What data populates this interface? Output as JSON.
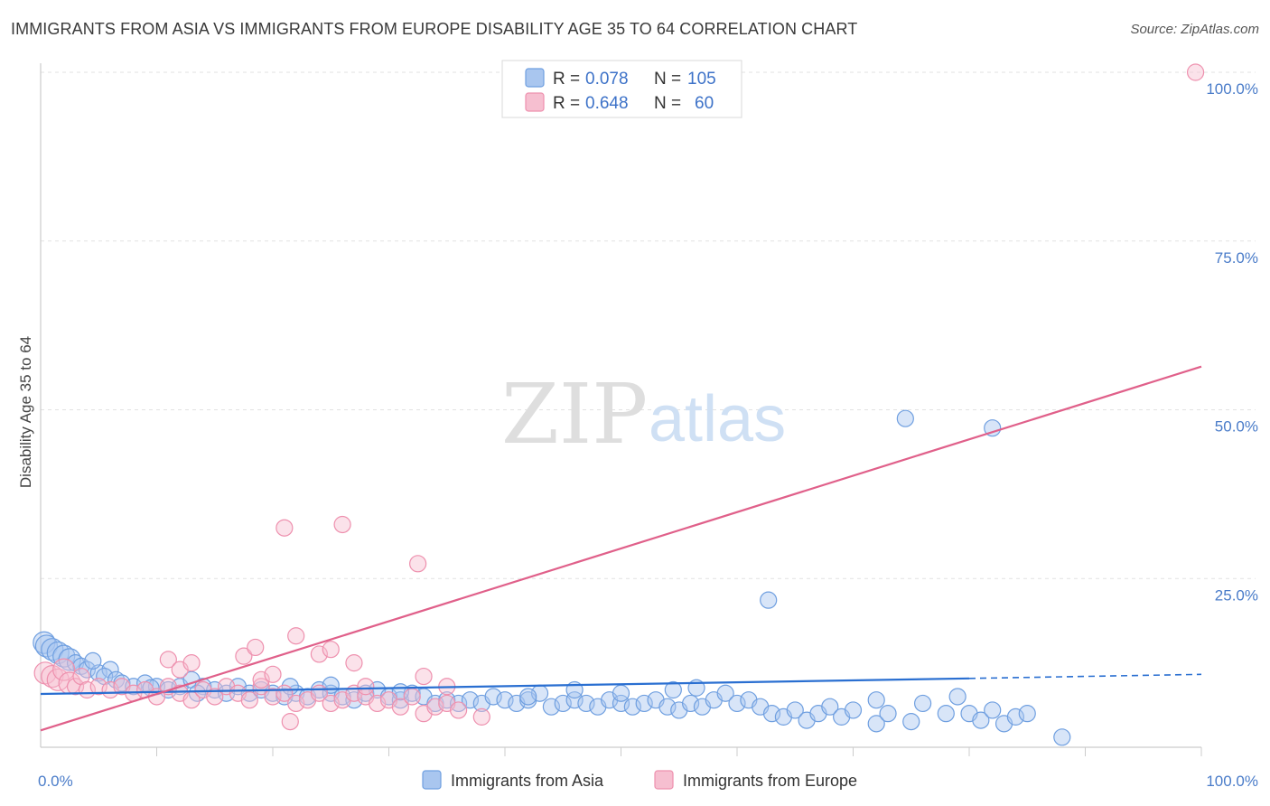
{
  "title": "IMMIGRANTS FROM ASIA VS IMMIGRANTS FROM EUROPE DISABILITY AGE 35 TO 64 CORRELATION CHART",
  "source": "Source: ZipAtlas.com",
  "watermark": {
    "zip": "ZIP",
    "atlas": "atlas"
  },
  "chart_data": {
    "type": "scatter",
    "title": "IMMIGRANTS FROM ASIA VS IMMIGRANTS FROM EUROPE DISABILITY AGE 35 TO 64 CORRELATION CHART",
    "xlabel": "",
    "ylabel": "Disability Age 35 to 64",
    "xlim": [
      0,
      100
    ],
    "ylim": [
      0,
      100
    ],
    "x_tick_labels": {
      "left": "0.0%",
      "right": "100.0%"
    },
    "y_ticks": [
      {
        "value": 100,
        "label": "100.0%"
      },
      {
        "value": 75,
        "label": "75.0%"
      },
      {
        "value": 50,
        "label": "50.0%"
      },
      {
        "value": 25,
        "label": "25.0%"
      }
    ],
    "legend_position": "top-center",
    "stats": [
      {
        "r_label": "R =",
        "r": "0.078",
        "n_label": "N =",
        "n": "105"
      },
      {
        "r_label": "R =",
        "r": "0.648",
        "n_label": "N =",
        "n": "60"
      }
    ],
    "series": [
      {
        "name": "Immigrants from Asia",
        "color": "#6f9fe0",
        "fill": "#a9c6ef",
        "line_color": "#2a6fd1",
        "trend": {
          "x0": 0,
          "y0": 7.9,
          "x1": 80,
          "y1": 10.2,
          "dash_to_x": 100,
          "dash_to_y": 10.8
        },
        "points": [
          [
            0.3,
            15.5
          ],
          [
            0.5,
            15
          ],
          [
            1,
            14.5
          ],
          [
            1.5,
            14
          ],
          [
            2,
            13.5
          ],
          [
            2.5,
            13
          ],
          [
            3,
            12.5
          ],
          [
            3.5,
            12
          ],
          [
            4,
            11.5
          ],
          [
            5,
            11
          ],
          [
            6,
            11.5
          ],
          [
            5.5,
            10.5
          ],
          [
            6.5,
            10
          ],
          [
            7,
            9.5
          ],
          [
            8,
            9
          ],
          [
            9,
            9.5
          ],
          [
            10,
            9
          ],
          [
            11,
            8.5
          ],
          [
            12,
            9
          ],
          [
            13,
            10
          ],
          [
            14,
            9
          ],
          [
            15,
            8.5
          ],
          [
            16,
            8
          ],
          [
            17,
            9
          ],
          [
            18,
            8
          ],
          [
            19,
            8.5
          ],
          [
            20,
            8
          ],
          [
            21,
            7.5
          ],
          [
            22,
            8
          ],
          [
            23,
            7.5
          ],
          [
            24,
            8.5
          ],
          [
            25,
            8
          ],
          [
            26,
            7.5
          ],
          [
            27,
            7
          ],
          [
            28,
            8
          ],
          [
            29,
            8.5
          ],
          [
            30,
            7.5
          ],
          [
            31,
            7
          ],
          [
            32,
            8
          ],
          [
            33,
            7.5
          ],
          [
            34,
            6.5
          ],
          [
            35,
            7
          ],
          [
            36,
            6.5
          ],
          [
            37,
            7
          ],
          [
            38,
            6.5
          ],
          [
            39,
            7.5
          ],
          [
            40,
            7
          ],
          [
            41,
            6.5
          ],
          [
            42,
            7
          ],
          [
            43,
            8
          ],
          [
            44,
            6
          ],
          [
            45,
            6.5
          ],
          [
            46,
            7
          ],
          [
            47,
            6.5
          ],
          [
            48,
            6
          ],
          [
            49,
            7
          ],
          [
            50,
            6.5
          ],
          [
            51,
            6
          ],
          [
            52,
            6.5
          ],
          [
            53,
            7
          ],
          [
            54,
            6
          ],
          [
            55,
            5.5
          ],
          [
            56,
            6.5
          ],
          [
            57,
            6
          ],
          [
            58,
            7
          ],
          [
            59,
            8
          ],
          [
            60,
            6.5
          ],
          [
            61,
            7
          ],
          [
            62,
            6
          ],
          [
            63,
            5
          ],
          [
            64,
            4.5
          ],
          [
            65,
            5.5
          ],
          [
            66,
            4
          ],
          [
            67,
            5
          ],
          [
            68,
            6
          ],
          [
            69,
            4.5
          ],
          [
            70,
            5.5
          ],
          [
            72,
            7
          ],
          [
            72,
            3.5
          ],
          [
            73,
            5
          ],
          [
            75,
            3.8
          ],
          [
            76,
            6.5
          ],
          [
            78,
            5
          ],
          [
            79,
            7.5
          ],
          [
            80,
            5
          ],
          [
            81,
            4
          ],
          [
            82,
            5.5
          ],
          [
            83,
            3.5
          ],
          [
            84,
            4.5
          ],
          [
            85,
            5
          ],
          [
            9.5,
            8.8
          ],
          [
            13.5,
            8
          ],
          [
            21.5,
            9
          ],
          [
            25,
            9.2
          ],
          [
            31,
            8.2
          ],
          [
            42,
            7.5
          ],
          [
            46,
            8.5
          ],
          [
            50,
            8
          ],
          [
            54.5,
            8.5
          ],
          [
            56.5,
            8.8
          ],
          [
            62.7,
            21.8
          ],
          [
            74.5,
            48.7
          ],
          [
            82,
            47.3
          ],
          [
            88,
            1.5
          ],
          [
            4.5,
            12.8
          ]
        ]
      },
      {
        "name": "Immigrants from Europe",
        "color": "#ee90ae",
        "fill": "#f6bfd0",
        "line_color": "#e0608a",
        "trend": {
          "x0": 0,
          "y0": 2.5,
          "x1": 100,
          "y1": 56.4
        },
        "points": [
          [
            0.4,
            11
          ],
          [
            1,
            10.5
          ],
          [
            1.5,
            10
          ],
          [
            2,
            11.5
          ],
          [
            2.5,
            9.5
          ],
          [
            3,
            9
          ],
          [
            3.5,
            10.5
          ],
          [
            4,
            8.5
          ],
          [
            5,
            9
          ],
          [
            6,
            8.5
          ],
          [
            7,
            9
          ],
          [
            8,
            8
          ],
          [
            9,
            8.5
          ],
          [
            10,
            7.5
          ],
          [
            11,
            9
          ],
          [
            12,
            8
          ],
          [
            13,
            7
          ],
          [
            14,
            8.5
          ],
          [
            15,
            7.5
          ],
          [
            16,
            9
          ],
          [
            17,
            8
          ],
          [
            18,
            7
          ],
          [
            19,
            9
          ],
          [
            20,
            7.5
          ],
          [
            21,
            8
          ],
          [
            22,
            6.5
          ],
          [
            23,
            7
          ],
          [
            24,
            8
          ],
          [
            25,
            6.5
          ],
          [
            26,
            7
          ],
          [
            27,
            8
          ],
          [
            28,
            7.5
          ],
          [
            29,
            6.5
          ],
          [
            30,
            7
          ],
          [
            31,
            6
          ],
          [
            32,
            7.5
          ],
          [
            33,
            5
          ],
          [
            34,
            6
          ],
          [
            35,
            6.5
          ],
          [
            36,
            5.5
          ],
          [
            11,
            13
          ],
          [
            12,
            11.5
          ],
          [
            13,
            12.5
          ],
          [
            17.5,
            13.5
          ],
          [
            18.5,
            14.8
          ],
          [
            19,
            10
          ],
          [
            20,
            10.8
          ],
          [
            22,
            16.5
          ],
          [
            24,
            13.8
          ],
          [
            25,
            14.5
          ],
          [
            27,
            12.5
          ],
          [
            28,
            9
          ],
          [
            21,
            32.5
          ],
          [
            26,
            33
          ],
          [
            32.5,
            27.2
          ],
          [
            33,
            10.5
          ],
          [
            35,
            9
          ],
          [
            38,
            4.5
          ],
          [
            21.5,
            3.8
          ],
          [
            99.5,
            100
          ]
        ]
      }
    ]
  }
}
